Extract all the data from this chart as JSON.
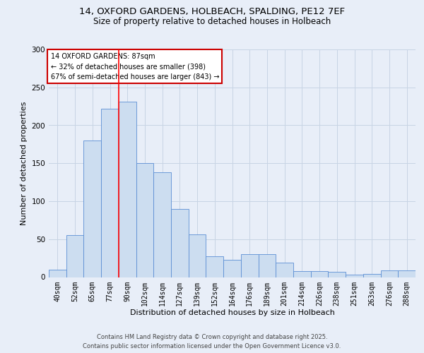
{
  "title_line1": "14, OXFORD GARDENS, HOLBEACH, SPALDING, PE12 7EF",
  "title_line2": "Size of property relative to detached houses in Holbeach",
  "xlabel": "Distribution of detached houses by size in Holbeach",
  "ylabel": "Number of detached properties",
  "bar_labels": [
    "40sqm",
    "52sqm",
    "65sqm",
    "77sqm",
    "90sqm",
    "102sqm",
    "114sqm",
    "127sqm",
    "139sqm",
    "152sqm",
    "164sqm",
    "176sqm",
    "189sqm",
    "201sqm",
    "214sqm",
    "226sqm",
    "238sqm",
    "251sqm",
    "263sqm",
    "276sqm",
    "288sqm"
  ],
  "bar_values": [
    10,
    55,
    180,
    222,
    231,
    150,
    138,
    90,
    56,
    27,
    23,
    30,
    30,
    19,
    8,
    8,
    7,
    3,
    4,
    9,
    9
  ],
  "bar_color": "#ccddf0",
  "bar_edge_color": "#5b8ed4",
  "grid_color": "#c8d4e4",
  "background_color": "#e8eef8",
  "red_line_index": 3.5,
  "annotation_text": "14 OXFORD GARDENS: 87sqm\n← 32% of detached houses are smaller (398)\n67% of semi-detached houses are larger (843) →",
  "annotation_box_color": "#ffffff",
  "annotation_box_edge": "#cc0000",
  "footer_line1": "Contains HM Land Registry data © Crown copyright and database right 2025.",
  "footer_line2": "Contains public sector information licensed under the Open Government Licence v3.0.",
  "ylim": [
    0,
    300
  ],
  "yticks": [
    0,
    50,
    100,
    150,
    200,
    250,
    300
  ],
  "title_fontsize": 9.5,
  "subtitle_fontsize": 8.5,
  "xlabel_fontsize": 8.0,
  "ylabel_fontsize": 8.0,
  "tick_fontsize": 7.0,
  "annot_fontsize": 7.0,
  "footer_fontsize": 6.0
}
